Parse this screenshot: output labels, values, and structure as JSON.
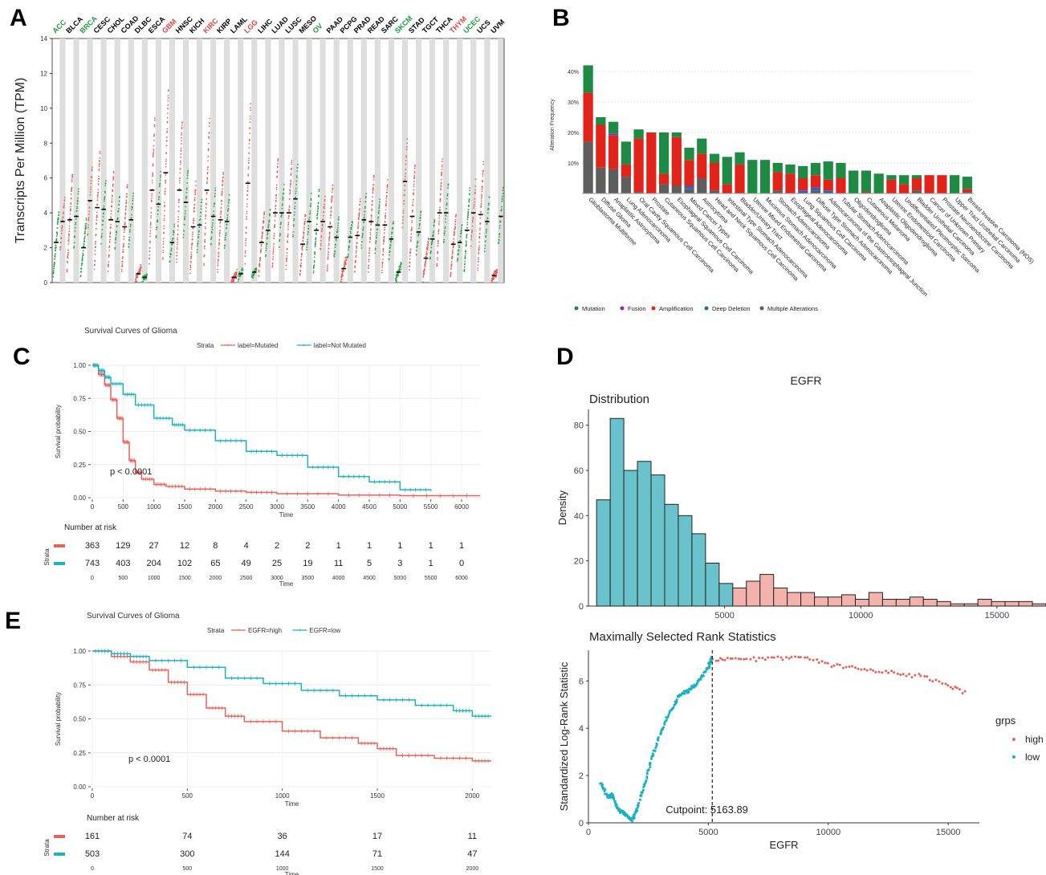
{
  "panel_labels": [
    "A",
    "B",
    "C",
    "D",
    "E"
  ],
  "chart_data": [
    {
      "panel": "A",
      "type": "scatter",
      "ylabel": "Transcripts Per Million (TPM)",
      "ylim": [
        0,
        14
      ],
      "yticks": [
        0,
        2,
        4,
        6,
        8,
        10,
        12,
        14
      ],
      "cancers": [
        "ACC",
        "BLCA",
        "BRCA",
        "CESC",
        "CHOL",
        "COAD",
        "DLBC",
        "ESCA",
        "GBM",
        "HNSC",
        "KICH",
        "KIRC",
        "KIRP",
        "LAML",
        "LGG",
        "LIHC",
        "LUAD",
        "LUSC",
        "MESO",
        "OV",
        "PAAD",
        "PCPG",
        "PRAD",
        "READ",
        "SARC",
        "SKCM",
        "STAD",
        "TGCT",
        "THCA",
        "THYM",
        "UCEC",
        "UCS",
        "UVM"
      ],
      "cancer_colors": [
        "#1b9e3a",
        "#000000",
        "#1b9e3a",
        "#000000",
        "#000000",
        "#000000",
        "#000000",
        "#000000",
        "#e0463f",
        "#000000",
        "#000000",
        "#e0463f",
        "#000000",
        "#000000",
        "#e0463f",
        "#000000",
        "#000000",
        "#000000",
        "#000000",
        "#1b9e3a",
        "#000000",
        "#000000",
        "#000000",
        "#000000",
        "#000000",
        "#1b9e3a",
        "#000000",
        "#000000",
        "#000000",
        "#e0463f",
        "#1b9e3a",
        "#000000",
        "#000000"
      ],
      "tumor_median": [
        2.3,
        3.6,
        2.0,
        4.3,
        3.6,
        3.2,
        0.5,
        5.3,
        6.3,
        5.3,
        3.2,
        5.3,
        3.6,
        0.3,
        5.7,
        2.3,
        4.0,
        4.0,
        2.2,
        3.0,
        3.2,
        0.8,
        2.7,
        3.5,
        3.3,
        0.6,
        3.8,
        1.4,
        4.0,
        2.2,
        3.0,
        3.9,
        0.4
      ],
      "normal_median": [
        3.5,
        3.8,
        4.7,
        4.2,
        3.5,
        3.6,
        0.3,
        4.5,
        2.3,
        4.6,
        3.3,
        3.8,
        3.5,
        0.5,
        0.6,
        3.0,
        4.0,
        4.8,
        3.5,
        3.5,
        2.6,
        2.6,
        3.6,
        3.3,
        2.5,
        5.8,
        2.9,
        2.5,
        4.0,
        2.3,
        4.0,
        3.5,
        3.8
      ]
    },
    {
      "panel": "B",
      "type": "bar",
      "ylabel": "Alteration Frequency",
      "ylim": [
        0,
        45
      ],
      "yticks": [
        "10%",
        "20%",
        "30%",
        "40%"
      ],
      "categories": [
        "Glioblastoma Multiforme",
        "Diffuse Glioma",
        "Anaplastic Astrocytoma",
        "Lung Adenocarcinoma",
        "Oral Cavity Squamous Cell Carcinoma",
        "Prostate",
        "Cutaneous Squamous Cell Carcinoma",
        "Esophageal Squamous Cell Carcinoma",
        "Mixed Cancer Types",
        "Astrocytoma",
        "Head and Neck Squamous Cell Carcinoma",
        "Intestinal Type Stomach Adenocarcinoma",
        "Bladder/Urinary Tract",
        "Uterine Mixed Endometrial Carcinoma",
        "Mucinous Stomach Adenocarcinoma",
        "Stomach Adenocarcinoma",
        "Esophageal Adenocarcinoma",
        "Lung Squamous Cell Carcinoma",
        "Diffuse Type Stomach Adenocarcinoma",
        "Adenocarcinoma of the Gastroesophageal Junction",
        "Tubular Stomach Adenocarcinoma",
        "Oligodendroglioma",
        "Cutaneous Melanoma",
        "Anaplastic Oligodendroglioma",
        "Uterine Endometrioid Carcinoma",
        "Undifferentiated Pleomorphic Sarcoma",
        "Bladder Urothelial Carcinoma",
        "Cancer of Unknown Primary",
        "Prostate Neuroendocrine Carcinoma",
        "Upper Tract Urothelial Carcinoma",
        "Breast Invasive Carcinoma (NOS)"
      ],
      "series": [
        {
          "name": "Mutation",
          "color": "#1e8a43",
          "values": [
            9,
            2.5,
            4,
            7.5,
            3,
            0,
            13.5,
            1.5,
            4,
            5,
            3,
            9,
            4,
            11,
            11,
            3,
            3,
            4,
            4,
            6,
            5,
            7.5,
            7,
            6.5,
            1.5,
            3,
            1,
            0,
            0,
            6,
            4
          ]
        },
        {
          "name": "Fusion",
          "color": "#8e2fa0",
          "values": [
            0,
            0,
            0.5,
            0,
            0,
            0,
            0,
            0,
            0,
            0,
            0,
            0,
            0,
            0,
            0,
            0,
            0,
            0,
            0,
            0,
            0,
            0,
            0,
            0,
            0,
            0,
            0,
            0,
            0,
            0,
            0
          ]
        },
        {
          "name": "Amplification",
          "color": "#e2231a",
          "values": [
            16,
            14,
            11,
            4,
            17.5,
            20,
            3.5,
            16,
            8.5,
            8,
            9,
            3,
            9.5,
            0,
            0,
            6,
            6.5,
            4,
            4,
            3.5,
            5,
            0,
            0.5,
            0,
            4.5,
            3,
            4,
            6,
            6,
            0,
            1
          ]
        },
        {
          "name": "Deep Deletion",
          "color": "#3a5fb5",
          "values": [
            0,
            0,
            0,
            0,
            0,
            0,
            0,
            0,
            1,
            0,
            0,
            0,
            0,
            0,
            0,
            0,
            0,
            1,
            1,
            1,
            0,
            0,
            0,
            0,
            0,
            0,
            0,
            0,
            0,
            0,
            0
          ]
        },
        {
          "name": "Multiple Alterations",
          "color": "#5d5d5d",
          "values": [
            17,
            8.5,
            8,
            5.5,
            0.5,
            0,
            3,
            2.5,
            1.5,
            5,
            1,
            0,
            0,
            0,
            0,
            1,
            0,
            0,
            1,
            0,
            0,
            0,
            0,
            0,
            0,
            0,
            1,
            0,
            0,
            0,
            0.5
          ]
        }
      ]
    },
    {
      "panel": "C",
      "type": "line",
      "title": "Survival Curves of Glioma",
      "legend_title": "Strata",
      "xlabel": "Time",
      "ylabel": "Survival probability",
      "xlim": [
        0,
        6300
      ],
      "xticks": [
        0,
        500,
        1000,
        1500,
        2000,
        2500,
        3000,
        3500,
        4000,
        4500,
        5000,
        5500,
        6000
      ],
      "yticks": [
        "0.00",
        "0.25",
        "0.50",
        "0.75",
        "1.00"
      ],
      "annotation": "p < 0.0001",
      "series": [
        {
          "name": "label=Mutated",
          "color": "#e8625c",
          "x": [
            0,
            100,
            200,
            300,
            400,
            500,
            600,
            700,
            800,
            1000,
            1200,
            1500,
            2000,
            2500,
            3000,
            4000,
            5000,
            6300
          ],
          "y": [
            1,
            0.93,
            0.85,
            0.74,
            0.6,
            0.42,
            0.28,
            0.19,
            0.14,
            0.1,
            0.085,
            0.065,
            0.05,
            0.04,
            0.03,
            0.02,
            0.015,
            0.015
          ]
        },
        {
          "name": "label=Not Mutated",
          "color": "#1ab3c0",
          "x": [
            0,
            100,
            200,
            300,
            500,
            700,
            1000,
            1300,
            1500,
            2000,
            2500,
            3000,
            3500,
            4000,
            4500,
            5000,
            5500
          ],
          "y": [
            1,
            0.96,
            0.91,
            0.86,
            0.78,
            0.7,
            0.6,
            0.55,
            0.51,
            0.43,
            0.35,
            0.32,
            0.23,
            0.16,
            0.12,
            0.06,
            0.05
          ]
        }
      ],
      "risk_table": {
        "title": "Number at risk",
        "label": "Strata",
        "xlabel": "Time",
        "rows": [
          {
            "color": "#e8625c",
            "values": [
              "363",
              "129",
              "27",
              "12",
              "8",
              "4",
              "2",
              "2",
              "1",
              "1",
              "1",
              "1",
              "1"
            ]
          },
          {
            "color": "#1ab3c0",
            "values": [
              "743",
              "403",
              "204",
              "102",
              "65",
              "49",
              "25",
              "19",
              "11",
              "5",
              "3",
              "1",
              "0"
            ]
          }
        ]
      }
    },
    {
      "panel": "D",
      "type": "bar",
      "title": "EGFR",
      "subtitle": "Distribution",
      "xlabel": "",
      "ylabel": "Density",
      "xlim": [
        0,
        16300
      ],
      "ylim": [
        0,
        87
      ],
      "xticks": [
        5000,
        10000,
        15000
      ],
      "yticks": [
        0,
        20,
        40,
        60,
        80
      ],
      "bin_width": 500,
      "bin_start": 300,
      "cutpoint": 5163.89,
      "values": [
        47,
        83,
        60,
        64,
        58,
        45,
        40,
        32,
        19,
        10,
        8,
        11,
        14,
        8,
        6,
        6,
        4,
        4,
        5,
        3,
        6,
        3,
        3,
        4,
        3,
        2,
        1,
        1,
        3,
        2,
        2,
        2,
        1
      ],
      "colors": {
        "low": "#6ac3cc",
        "high": "#f4b2ad"
      }
    },
    {
      "panel": "D",
      "type": "scatter",
      "title": "Maximally Selected Rank Statistics",
      "xlabel": "EGFR",
      "ylabel": "Standardized Log-Rank Statistic",
      "xlim": [
        0,
        16300
      ],
      "ylim": [
        0,
        7.3
      ],
      "xticks": [
        0,
        5000,
        10000,
        15000
      ],
      "yticks": [
        0,
        2,
        4,
        6
      ],
      "annotation": "Cutpoint: 5163.89",
      "cutpoint": 5163.89,
      "legend_title": "grps",
      "series": [
        {
          "name": "high",
          "color": "#e8625c",
          "x": [
            5200,
            6000,
            7000,
            8000,
            9000,
            10000,
            11000,
            12000,
            13000,
            14000,
            15000,
            15800
          ],
          "y": [
            6.9,
            7.0,
            6.9,
            7.0,
            7.0,
            6.7,
            6.6,
            6.4,
            6.3,
            6.2,
            5.8,
            5.5
          ]
        },
        {
          "name": "low",
          "color": "#1ab3c0",
          "x": [
            500,
            800,
            1000,
            1200,
            1500,
            1800,
            2000,
            2300,
            2600,
            3000,
            3400,
            3800,
            4200,
            4600,
            5000,
            5150
          ],
          "y": [
            1.7,
            1.1,
            1.2,
            0.6,
            0.4,
            0.1,
            0.5,
            1.5,
            2.6,
            3.8,
            4.7,
            5.4,
            5.6,
            6.0,
            6.6,
            7.0
          ]
        }
      ]
    },
    {
      "panel": "E",
      "type": "line",
      "title": "Survival Curves of Glioma",
      "legend_title": "Strata",
      "xlabel": "Time",
      "ylabel": "Survival probability",
      "xlim": [
        0,
        2100
      ],
      "xticks": [
        0,
        500,
        1000,
        1500,
        2000
      ],
      "yticks": [
        "0.00",
        "0.25",
        "0.50",
        "0.75",
        "1.00"
      ],
      "annotation": "p < 0.0001",
      "series": [
        {
          "name": "EGFR=high",
          "color": "#e8625c",
          "x": [
            0,
            100,
            200,
            300,
            400,
            500,
            600,
            700,
            800,
            1000,
            1200,
            1400,
            1500,
            1600,
            1800,
            2000,
            2100
          ],
          "y": [
            1,
            0.96,
            0.92,
            0.86,
            0.77,
            0.68,
            0.58,
            0.52,
            0.48,
            0.41,
            0.36,
            0.32,
            0.28,
            0.23,
            0.21,
            0.19,
            0.19
          ]
        },
        {
          "name": "EGFR=low",
          "color": "#1ab3c0",
          "x": [
            0,
            100,
            200,
            300,
            500,
            700,
            900,
            1100,
            1300,
            1500,
            1700,
            1900,
            2000,
            2100
          ],
          "y": [
            1,
            0.98,
            0.96,
            0.93,
            0.88,
            0.8,
            0.76,
            0.71,
            0.67,
            0.64,
            0.6,
            0.56,
            0.52,
            0.52
          ]
        }
      ],
      "risk_table": {
        "title": "Number at risk",
        "label": "Strata",
        "xlabel": "Time",
        "rows": [
          {
            "color": "#e8625c",
            "values": [
              "161",
              "74",
              "36",
              "17",
              "11"
            ]
          },
          {
            "color": "#1ab3c0",
            "values": [
              "503",
              "300",
              "144",
              "71",
              "47"
            ]
          }
        ]
      }
    }
  ]
}
